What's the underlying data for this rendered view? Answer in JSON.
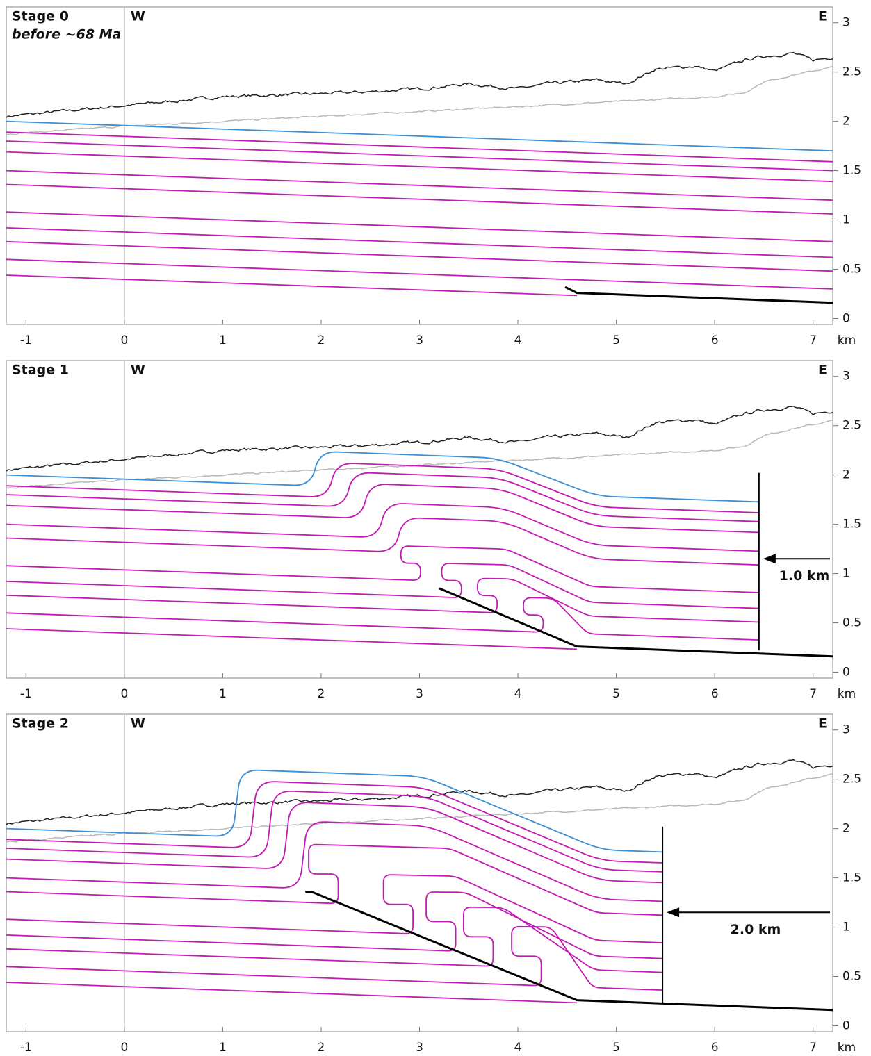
{
  "x_axis": {
    "lim": [
      -1.2,
      7.2
    ],
    "ticks": [
      -1,
      0,
      1,
      2,
      3,
      4,
      5,
      6,
      7
    ],
    "unit": "km"
  },
  "y_axis": {
    "lim": [
      -0.06,
      3.16
    ],
    "ticks": [
      0,
      0.5,
      1,
      1.5,
      2,
      2.5,
      3
    ]
  },
  "panels": [
    {
      "title": "Stage 0",
      "subtitle": "before ~68 Ma",
      "west": "W",
      "east": "E"
    },
    {
      "title": "Stage 1",
      "west": "W",
      "east": "E",
      "shortening_label": "1.0 km"
    },
    {
      "title": "Stage 2",
      "west": "W",
      "east": "E",
      "shortening_label": "2.0 km"
    }
  ]
}
